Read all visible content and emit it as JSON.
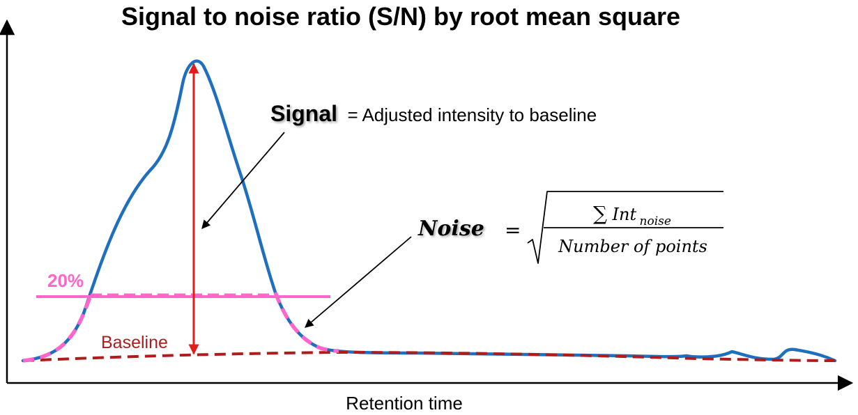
{
  "title": "Signal to noise ratio (S/N) by root mean square",
  "x_axis_label": "Retention time",
  "signal": {
    "word": "Signal",
    "definition": "= Adjusted intensity to baseline"
  },
  "noise": {
    "word": "Noise",
    "equals": "=",
    "numerator_sum": "∑",
    "numerator_main": "Int",
    "numerator_sub": "noise",
    "denominator": "Number of points"
  },
  "threshold_label": "20%",
  "baseline_label": "Baseline",
  "colors": {
    "peak": "#1f6fbf",
    "signal_arrow": "#e21b1b",
    "threshold": "#ff66cc",
    "baseline": "#b01c1c",
    "axes": "#000000"
  }
}
